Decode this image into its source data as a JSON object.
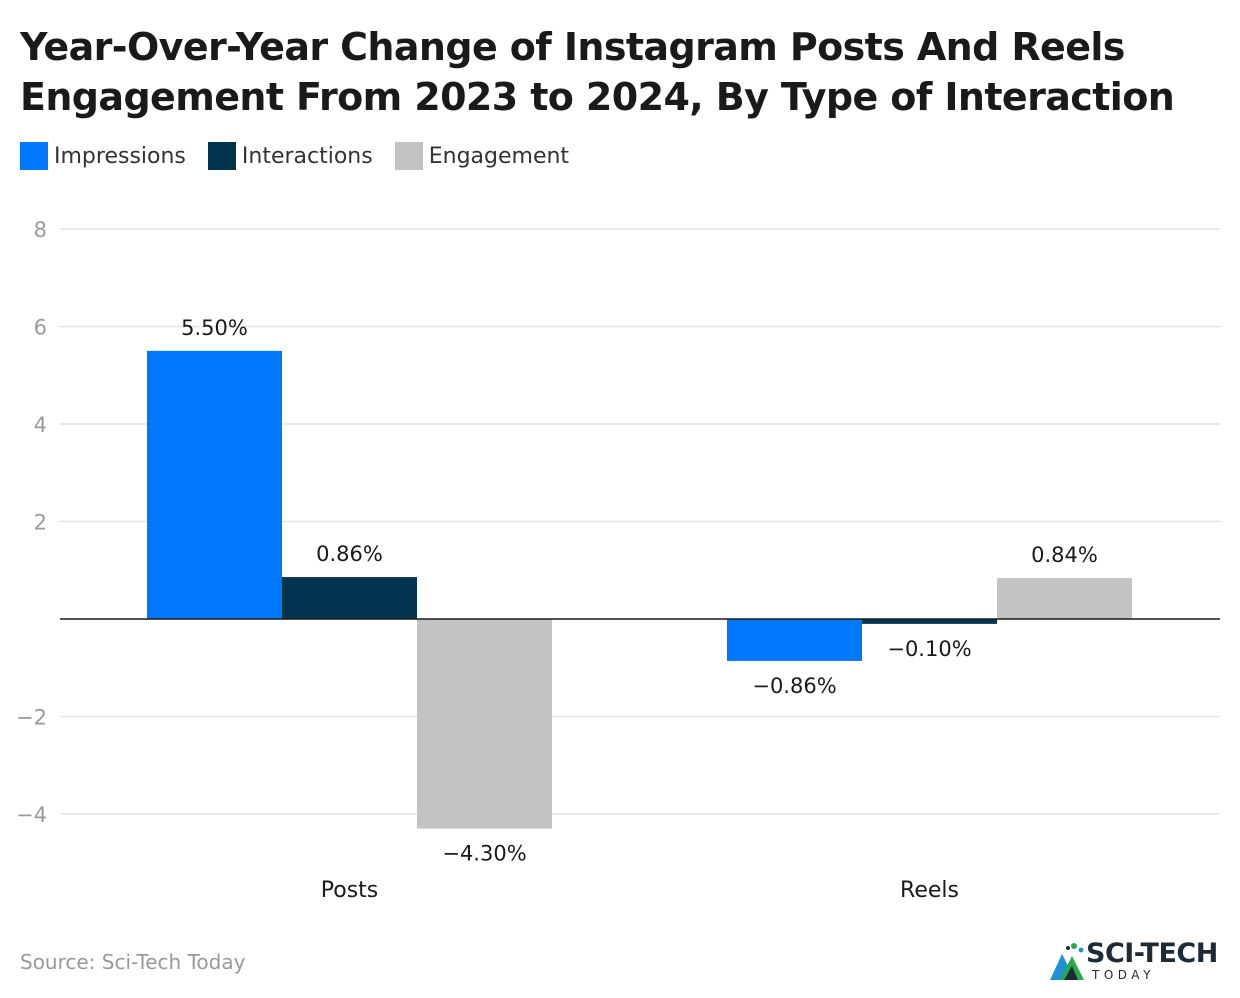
{
  "title": "Year-Over-Year Change of Instagram Posts And Reels Engagement From 2023 to 2024, By Type of Interaction",
  "source": "Source: Sci-Tech Today",
  "logo": {
    "brand": "SCI-TECH",
    "sub": "TODAY"
  },
  "colors": {
    "impressions": "#0077ff",
    "interactions": "#00344f",
    "engagement": "#c3c3c3",
    "grid": "#e3e3e3",
    "axis": "#1a1a1a",
    "tick_text": "#9a9a9a"
  },
  "chart_data": {
    "type": "bar",
    "title": "Year-Over-Year Change of Instagram Posts And Reels Engagement From 2023 to 2024, By Type of Interaction",
    "xlabel": "",
    "ylabel": "",
    "categories": [
      "Posts",
      "Reels"
    ],
    "series": [
      {
        "name": "Impressions",
        "values": [
          5.5,
          -0.86
        ],
        "labels": [
          "5.50%",
          "−0.86%"
        ]
      },
      {
        "name": "Interactions",
        "values": [
          0.86,
          -0.1
        ],
        "labels": [
          "0.86%",
          "−0.10%"
        ]
      },
      {
        "name": "Engagement",
        "values": [
          -4.3,
          0.84
        ],
        "labels": [
          "−4.30%",
          "0.84%"
        ]
      }
    ],
    "ylim": [
      -4.8,
      8
    ],
    "yticks": [
      8,
      6,
      4,
      2,
      -2,
      -4
    ],
    "ytick_labels": [
      "8",
      "6",
      "4",
      "2",
      "−2",
      "−4"
    ],
    "grid": true,
    "legend_position": "top-left"
  }
}
